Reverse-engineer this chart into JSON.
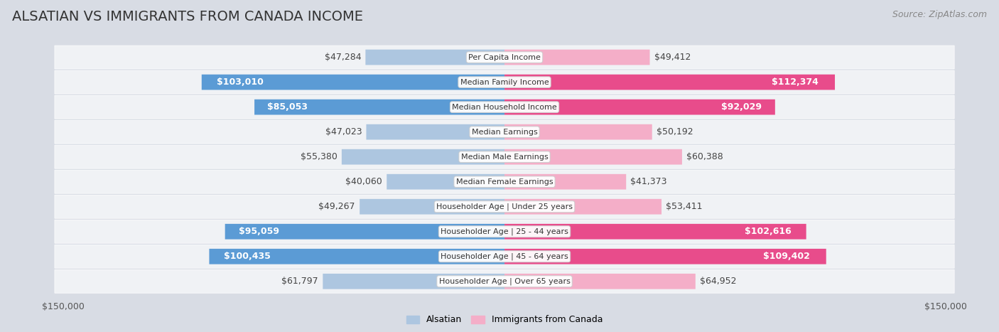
{
  "title": "ALSATIAN VS IMMIGRANTS FROM CANADA INCOME",
  "source": "Source: ZipAtlas.com",
  "categories": [
    "Per Capita Income",
    "Median Family Income",
    "Median Household Income",
    "Median Earnings",
    "Median Male Earnings",
    "Median Female Earnings",
    "Householder Age | Under 25 years",
    "Householder Age | 25 - 44 years",
    "Householder Age | 45 - 64 years",
    "Householder Age | Over 65 years"
  ],
  "alsatian_values": [
    47284,
    103010,
    85053,
    47023,
    55380,
    40060,
    49267,
    95059,
    100435,
    61797
  ],
  "canada_values": [
    49412,
    112374,
    92029,
    50192,
    60388,
    41373,
    53411,
    102616,
    109402,
    64952
  ],
  "alsatian_color_light": "#adc6e0",
  "alsatian_color_dark": "#5b9bd5",
  "canada_color_light": "#f4aec8",
  "canada_color_dark": "#e84c8b",
  "max_value": 150000,
  "label_inside_threshold": 75000,
  "row_bg_color": "#f0f2f5",
  "page_bg_color": "#d8dce4",
  "title_fontsize": 14,
  "source_fontsize": 9,
  "bar_label_fontsize": 9,
  "category_fontsize": 8,
  "axis_label_fontsize": 9,
  "legend_fontsize": 9
}
